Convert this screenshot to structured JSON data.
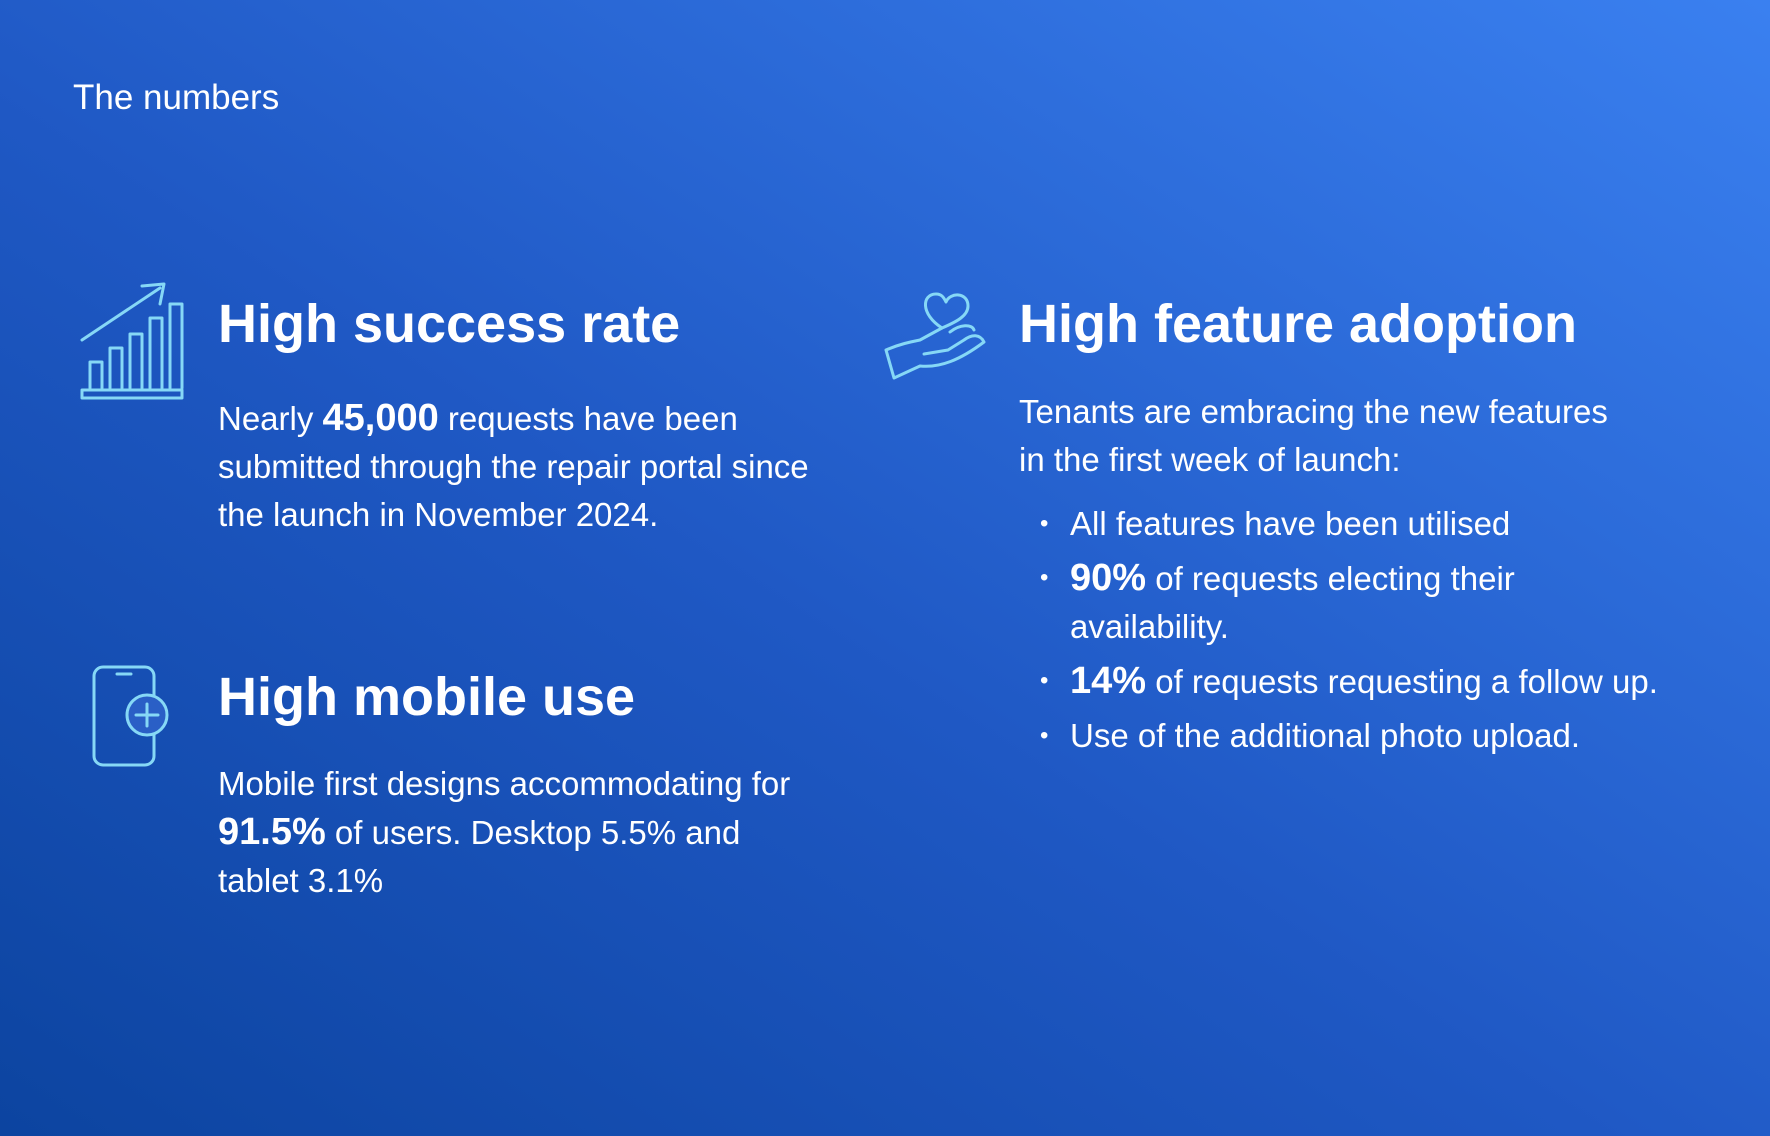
{
  "header": {
    "title": "The numbers"
  },
  "cards": [
    {
      "title": "High success rate",
      "body": [
        {
          "text": "Nearly "
        },
        {
          "strong": "45,000"
        },
        {
          "text": " requests have been submitted through the repair portal since the launch in November 2024."
        }
      ]
    },
    {
      "title": "High mobile use",
      "body": [
        {
          "text": "Mobile first designs accommodating for "
        },
        {
          "strong": "91.5%"
        },
        {
          "text": " of users. Desktop 5.5% and tablet 3.1%"
        }
      ]
    },
    {
      "title": "High feature adoption",
      "body": [
        {
          "text": "Tenants are embracing the new features in the first week of launch:"
        }
      ],
      "bullets": [
        [
          {
            "text": "All features have been utilised"
          }
        ],
        [
          {
            "strong": "90%"
          },
          {
            "text": " of requests electing their availability."
          }
        ],
        [
          {
            "strong": "14%"
          },
          {
            "text": " of requests requesting a follow up."
          }
        ],
        [
          {
            "text": "Use of the additional photo upload."
          }
        ]
      ]
    }
  ]
}
